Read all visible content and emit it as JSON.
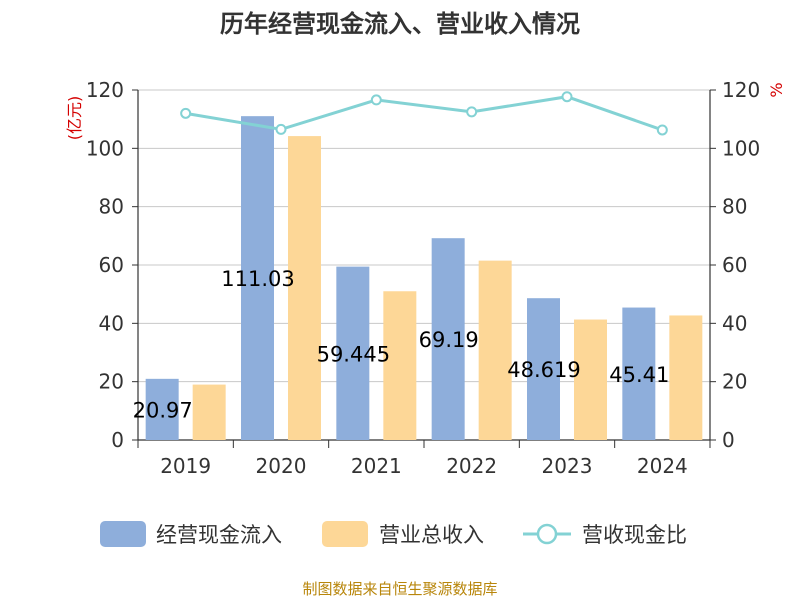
{
  "chart_data": {
    "type": "bar",
    "title": "历年经营现金流入、营业收入情况",
    "categories": [
      "2019",
      "2020",
      "2021",
      "2022",
      "2023",
      "2024"
    ],
    "series": [
      {
        "name": "经营现金流入",
        "values": [
          20.97,
          111.03,
          59.445,
          69.19,
          48.619,
          45.41
        ],
        "color": "#8eaedb",
        "axis": "left"
      },
      {
        "name": "营业总收入",
        "values": [
          19.0,
          104.2,
          51.0,
          61.5,
          41.3,
          42.7
        ],
        "color": "#fdd797",
        "axis": "left"
      },
      {
        "name": "营收现金比",
        "type": "line",
        "values": [
          112.0,
          106.5,
          116.6,
          112.5,
          117.7,
          106.3
        ],
        "color": "#83d2d4",
        "axis": "right"
      }
    ],
    "bar_labels": [
      "20.97",
      "111.03",
      "59.445",
      "69.19",
      "48.619",
      "45.41"
    ],
    "y_left": {
      "label": "(亿元)",
      "ylim": [
        0,
        120
      ],
      "ticks": [
        "0",
        "20",
        "40",
        "60",
        "80",
        "100",
        "120"
      ]
    },
    "y_right": {
      "label": "%",
      "ylim": [
        0,
        120
      ],
      "ticks": [
        "0",
        "20",
        "40",
        "60",
        "80",
        "100",
        "120"
      ]
    },
    "grid": true,
    "legend": "bottom",
    "source": "制图数据来自恒生聚源数据库"
  }
}
